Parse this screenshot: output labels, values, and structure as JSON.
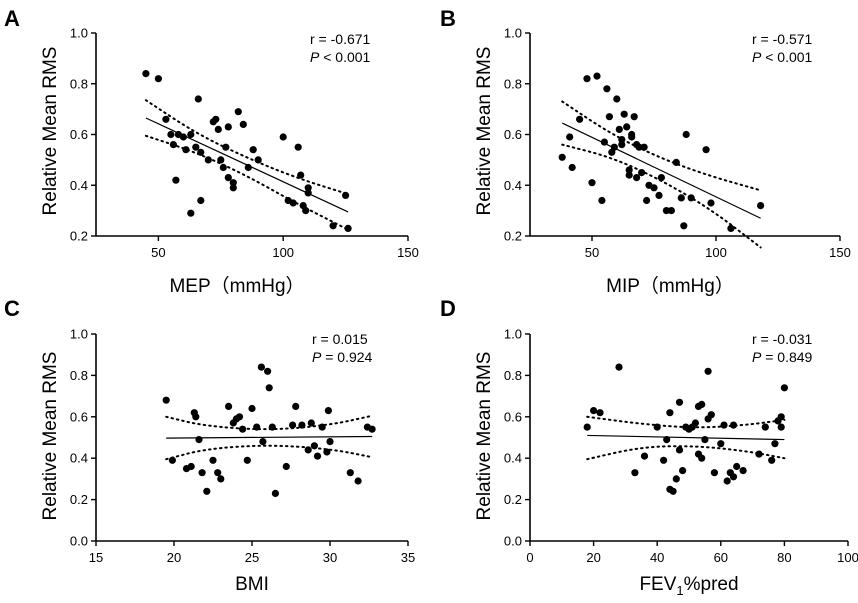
{
  "chart_data": [
    {
      "type": "scatter",
      "panel": "A",
      "ylabel": "Relative Mean RMS",
      "xlabel": "MEP（mmHg）",
      "xlim": [
        25,
        150
      ],
      "ylim": [
        0.2,
        1.0
      ],
      "xticks": [
        "50",
        "100",
        "150"
      ],
      "xtick_values": [
        50,
        100,
        150
      ],
      "yticks": [
        "0.2",
        "0.4",
        "0.6",
        "0.8",
        "1.0"
      ],
      "ytick_values": [
        0.2,
        0.4,
        0.6,
        0.8,
        1.0
      ],
      "r_text": "r = -0.671",
      "p_label": "P",
      "p_text": " < 0.001",
      "fit": {
        "x0": 45,
        "y0": 0.665,
        "x1": 126,
        "y1": 0.295
      },
      "ci_upper": [
        [
          45,
          0.735
        ],
        [
          65,
          0.605
        ],
        [
          85,
          0.51
        ],
        [
          105,
          0.43
        ],
        [
          126,
          0.365
        ]
      ],
      "ci_lower": [
        [
          45,
          0.595
        ],
        [
          65,
          0.53
        ],
        [
          85,
          0.44
        ],
        [
          105,
          0.33
        ],
        [
          126,
          0.225
        ]
      ],
      "points": [
        [
          45,
          0.84
        ],
        [
          50,
          0.82
        ],
        [
          53,
          0.66
        ],
        [
          55,
          0.6
        ],
        [
          56,
          0.56
        ],
        [
          57,
          0.42
        ],
        [
          58,
          0.6
        ],
        [
          60,
          0.59
        ],
        [
          61,
          0.54
        ],
        [
          63,
          0.6
        ],
        [
          63,
          0.29
        ],
        [
          65,
          0.55
        ],
        [
          66,
          0.74
        ],
        [
          67,
          0.34
        ],
        [
          67,
          0.53
        ],
        [
          70,
          0.5
        ],
        [
          72,
          0.65
        ],
        [
          73,
          0.66
        ],
        [
          74,
          0.62
        ],
        [
          75,
          0.5
        ],
        [
          76,
          0.47
        ],
        [
          77,
          0.55
        ],
        [
          78,
          0.63
        ],
        [
          78,
          0.43
        ],
        [
          80,
          0.41
        ],
        [
          80,
          0.39
        ],
        [
          82,
          0.69
        ],
        [
          84,
          0.64
        ],
        [
          86,
          0.47
        ],
        [
          88,
          0.54
        ],
        [
          90,
          0.5
        ],
        [
          100,
          0.59
        ],
        [
          102,
          0.34
        ],
        [
          104,
          0.33
        ],
        [
          106,
          0.55
        ],
        [
          107,
          0.44
        ],
        [
          108,
          0.32
        ],
        [
          109,
          0.3
        ],
        [
          110,
          0.37
        ],
        [
          110,
          0.39
        ],
        [
          120,
          0.24
        ],
        [
          125,
          0.36
        ],
        [
          126,
          0.23
        ]
      ]
    },
    {
      "type": "scatter",
      "panel": "B",
      "ylabel": "Relative Mean RMS",
      "xlabel": "MIP（mmHg）",
      "xlim": [
        25,
        150
      ],
      "ylim": [
        0.2,
        1.0
      ],
      "xticks": [
        "50",
        "100",
        "150"
      ],
      "xtick_values": [
        50,
        100,
        150
      ],
      "yticks": [
        "0.2",
        "0.4",
        "0.6",
        "0.8",
        "1.0"
      ],
      "ytick_values": [
        0.2,
        0.4,
        0.6,
        0.8,
        1.0
      ],
      "r_text": "r = -0.571",
      "p_label": "P",
      "p_text": " < 0.001",
      "fit": {
        "x0": 38,
        "y0": 0.645,
        "x1": 118,
        "y1": 0.27
      },
      "ci_upper": [
        [
          38,
          0.73
        ],
        [
          58,
          0.6
        ],
        [
          78,
          0.505
        ],
        [
          98,
          0.435
        ],
        [
          118,
          0.38
        ]
      ],
      "ci_lower": [
        [
          38,
          0.56
        ],
        [
          58,
          0.51
        ],
        [
          78,
          0.42
        ],
        [
          98,
          0.305
        ],
        [
          118,
          0.155
        ]
      ],
      "points": [
        [
          38,
          0.51
        ],
        [
          41,
          0.59
        ],
        [
          42,
          0.47
        ],
        [
          45,
          0.66
        ],
        [
          48,
          0.82
        ],
        [
          50,
          0.41
        ],
        [
          52,
          0.83
        ],
        [
          54,
          0.34
        ],
        [
          55,
          0.57
        ],
        [
          56,
          0.78
        ],
        [
          57,
          0.67
        ],
        [
          58,
          0.53
        ],
        [
          59,
          0.55
        ],
        [
          60,
          0.74
        ],
        [
          61,
          0.62
        ],
        [
          62,
          0.58
        ],
        [
          62,
          0.56
        ],
        [
          63,
          0.68
        ],
        [
          64,
          0.63
        ],
        [
          65,
          0.46
        ],
        [
          65,
          0.44
        ],
        [
          66,
          0.6
        ],
        [
          66,
          0.59
        ],
        [
          67,
          0.67
        ],
        [
          68,
          0.43
        ],
        [
          68,
          0.56
        ],
        [
          69,
          0.55
        ],
        [
          70,
          0.45
        ],
        [
          71,
          0.55
        ],
        [
          72,
          0.34
        ],
        [
          73,
          0.4
        ],
        [
          75,
          0.39
        ],
        [
          77,
          0.36
        ],
        [
          78,
          0.43
        ],
        [
          80,
          0.3
        ],
        [
          82,
          0.3
        ],
        [
          84,
          0.49
        ],
        [
          86,
          0.35
        ],
        [
          87,
          0.24
        ],
        [
          88,
          0.6
        ],
        [
          90,
          0.35
        ],
        [
          96,
          0.54
        ],
        [
          98,
          0.33
        ],
        [
          106,
          0.23
        ],
        [
          118,
          0.32
        ]
      ]
    },
    {
      "type": "scatter",
      "panel": "C",
      "ylabel": "Relative Mean RMS",
      "xlabel": "BMI",
      "xlim": [
        15,
        35
      ],
      "ylim": [
        0.0,
        1.0
      ],
      "xticks": [
        "15",
        "20",
        "25",
        "30",
        "35"
      ],
      "xtick_values": [
        15,
        20,
        25,
        30,
        35
      ],
      "yticks": [
        "0.0",
        "0.2",
        "0.4",
        "0.6",
        "0.8",
        "1.0"
      ],
      "ytick_values": [
        0.0,
        0.2,
        0.4,
        0.6,
        0.8,
        1.0
      ],
      "r_text": "r = 0.015",
      "p_label": "P",
      "p_text": " = 0.924",
      "fit": {
        "x0": 19.5,
        "y0": 0.497,
        "x1": 32.7,
        "y1": 0.505
      },
      "ci_upper": [
        [
          19.5,
          0.6
        ],
        [
          22,
          0.555
        ],
        [
          26,
          0.535
        ],
        [
          30,
          0.56
        ],
        [
          32.7,
          0.605
        ]
      ],
      "ci_lower": [
        [
          19.5,
          0.395
        ],
        [
          22,
          0.445
        ],
        [
          26,
          0.465
        ],
        [
          30,
          0.445
        ],
        [
          32.7,
          0.405
        ]
      ],
      "points": [
        [
          19.5,
          0.68
        ],
        [
          19.9,
          0.39
        ],
        [
          20.8,
          0.35
        ],
        [
          21.1,
          0.36
        ],
        [
          21.3,
          0.62
        ],
        [
          21.4,
          0.6
        ],
        [
          21.6,
          0.49
        ],
        [
          21.8,
          0.33
        ],
        [
          22.1,
          0.24
        ],
        [
          22.5,
          0.39
        ],
        [
          22.8,
          0.33
        ],
        [
          23.0,
          0.3
        ],
        [
          23.5,
          0.65
        ],
        [
          23.8,
          0.57
        ],
        [
          24.0,
          0.59
        ],
        [
          24.2,
          0.6
        ],
        [
          24.4,
          0.54
        ],
        [
          24.7,
          0.39
        ],
        [
          25.0,
          0.64
        ],
        [
          25.3,
          0.55
        ],
        [
          25.6,
          0.84
        ],
        [
          25.7,
          0.48
        ],
        [
          26.0,
          0.82
        ],
        [
          26.1,
          0.74
        ],
        [
          26.3,
          0.55
        ],
        [
          26.5,
          0.23
        ],
        [
          27.2,
          0.36
        ],
        [
          27.6,
          0.56
        ],
        [
          27.8,
          0.65
        ],
        [
          28.2,
          0.56
        ],
        [
          28.6,
          0.44
        ],
        [
          28.8,
          0.57
        ],
        [
          29.0,
          0.46
        ],
        [
          29.2,
          0.41
        ],
        [
          29.5,
          0.55
        ],
        [
          29.8,
          0.43
        ],
        [
          29.9,
          0.63
        ],
        [
          30.0,
          0.48
        ],
        [
          31.3,
          0.33
        ],
        [
          31.8,
          0.29
        ],
        [
          32.4,
          0.55
        ],
        [
          32.7,
          0.54
        ]
      ]
    },
    {
      "type": "scatter",
      "panel": "D",
      "ylabel": "Relative Mean RMS",
      "xlabel": "FEV₁%pred",
      "xlabel_main": "FEV",
      "xlabel_sub": "1",
      "xlabel_tail": "%pred",
      "xlim": [
        0,
        100
      ],
      "ylim": [
        0.0,
        1.0
      ],
      "xticks": [
        "0",
        "20",
        "40",
        "60",
        "80",
        "100"
      ],
      "xtick_values": [
        0,
        20,
        40,
        60,
        80,
        100
      ],
      "yticks": [
        "0.0",
        "0.2",
        "0.4",
        "0.6",
        "0.8",
        "1.0"
      ],
      "ytick_values": [
        0.0,
        0.2,
        0.4,
        0.6,
        0.8,
        1.0
      ],
      "r_text": "r = -0.031",
      "p_label": "P",
      "p_text": " = 0.849",
      "fit": {
        "x0": 18,
        "y0": 0.51,
        "x1": 80,
        "y1": 0.49
      },
      "ci_upper": [
        [
          18,
          0.6
        ],
        [
          35,
          0.565
        ],
        [
          52,
          0.545
        ],
        [
          68,
          0.56
        ],
        [
          80,
          0.585
        ]
      ],
      "ci_lower": [
        [
          18,
          0.395
        ],
        [
          35,
          0.455
        ],
        [
          52,
          0.46
        ],
        [
          68,
          0.435
        ],
        [
          80,
          0.4
        ]
      ],
      "points": [
        [
          18,
          0.55
        ],
        [
          20,
          0.63
        ],
        [
          22,
          0.62
        ],
        [
          28,
          0.84
        ],
        [
          33,
          0.33
        ],
        [
          36,
          0.41
        ],
        [
          40,
          0.55
        ],
        [
          42,
          0.39
        ],
        [
          43,
          0.49
        ],
        [
          44,
          0.62
        ],
        [
          44,
          0.25
        ],
        [
          45,
          0.24
        ],
        [
          46,
          0.3
        ],
        [
          47,
          0.44
        ],
        [
          47,
          0.67
        ],
        [
          48,
          0.34
        ],
        [
          49,
          0.55
        ],
        [
          50,
          0.54
        ],
        [
          51,
          0.55
        ],
        [
          52,
          0.57
        ],
        [
          53,
          0.65
        ],
        [
          53,
          0.42
        ],
        [
          54,
          0.66
        ],
        [
          54,
          0.4
        ],
        [
          55,
          0.49
        ],
        [
          56,
          0.59
        ],
        [
          56,
          0.82
        ],
        [
          57,
          0.61
        ],
        [
          58,
          0.33
        ],
        [
          60,
          0.47
        ],
        [
          61,
          0.56
        ],
        [
          62,
          0.29
        ],
        [
          63,
          0.33
        ],
        [
          64,
          0.56
        ],
        [
          64,
          0.31
        ],
        [
          65,
          0.36
        ],
        [
          67,
          0.34
        ],
        [
          72,
          0.42
        ],
        [
          74,
          0.55
        ],
        [
          76,
          0.39
        ],
        [
          77,
          0.47
        ],
        [
          78,
          0.58
        ],
        [
          79,
          0.6
        ],
        [
          79,
          0.55
        ],
        [
          80,
          0.74
        ]
      ]
    }
  ]
}
